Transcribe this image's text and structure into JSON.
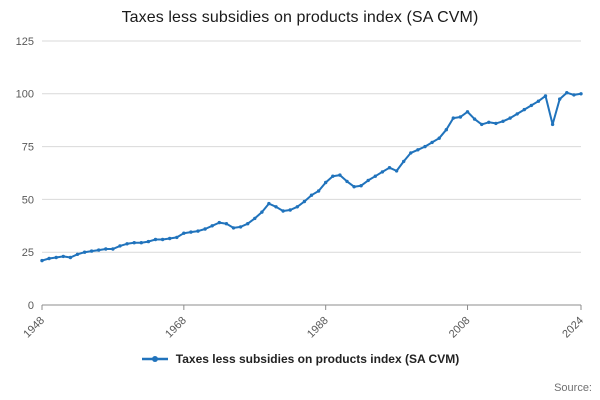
{
  "title": "Taxes less subsidies on products index (SA CVM)",
  "legend": {
    "label": "Taxes less subsidies on products index (SA CVM)"
  },
  "source_label": "Source:",
  "colors": {
    "series": "#2073bc",
    "grid": "#d9d9d9",
    "axis": "#8c8c8c",
    "tick_text": "#595959",
    "title_text": "#1a1a1a"
  },
  "chart_data": {
    "type": "line",
    "title": "Taxes less subsidies on products index (SA CVM)",
    "xlabel": "",
    "ylabel": "",
    "ylim": [
      0,
      125
    ],
    "yticks": [
      0,
      25,
      50,
      75,
      100,
      125
    ],
    "xticks": [
      1948,
      1968,
      1988,
      2008,
      2024
    ],
    "grid": "horizontal",
    "legend_position": "bottom",
    "series_name": "Taxes less subsidies on products index (SA CVM)",
    "x": [
      1948,
      1949,
      1950,
      1951,
      1952,
      1953,
      1954,
      1955,
      1956,
      1957,
      1958,
      1959,
      1960,
      1961,
      1962,
      1963,
      1964,
      1965,
      1966,
      1967,
      1968,
      1969,
      1970,
      1971,
      1972,
      1973,
      1974,
      1975,
      1976,
      1977,
      1978,
      1979,
      1980,
      1981,
      1982,
      1983,
      1984,
      1985,
      1986,
      1987,
      1988,
      1989,
      1990,
      1991,
      1992,
      1993,
      1994,
      1995,
      1996,
      1997,
      1998,
      1999,
      2000,
      2001,
      2002,
      2003,
      2004,
      2005,
      2006,
      2007,
      2008,
      2009,
      2010,
      2011,
      2012,
      2013,
      2014,
      2015,
      2016,
      2017,
      2018,
      2019,
      2020,
      2021,
      2022,
      2023,
      2024
    ],
    "values": [
      21,
      22,
      22.5,
      23,
      22.5,
      24,
      25,
      25.5,
      26,
      26.5,
      26.5,
      28,
      29,
      29.5,
      29.5,
      30,
      31,
      31,
      31.5,
      32,
      34,
      34.5,
      35,
      36,
      37.5,
      39,
      38.5,
      36.5,
      37,
      38.5,
      41,
      44,
      48,
      46.5,
      44.5,
      45,
      46.5,
      49,
      52,
      54,
      58,
      61,
      61.5,
      58.5,
      56,
      56.5,
      59,
      61,
      63,
      65,
      63.5,
      68,
      72,
      73.5,
      75,
      77,
      79,
      83,
      88.5,
      89,
      91.5,
      88,
      85.5,
      86.5,
      86,
      87,
      88.5,
      90.5,
      92.5,
      94.5,
      96.5,
      99,
      85.5,
      97.5,
      100.5,
      99.5,
      100
    ]
  }
}
